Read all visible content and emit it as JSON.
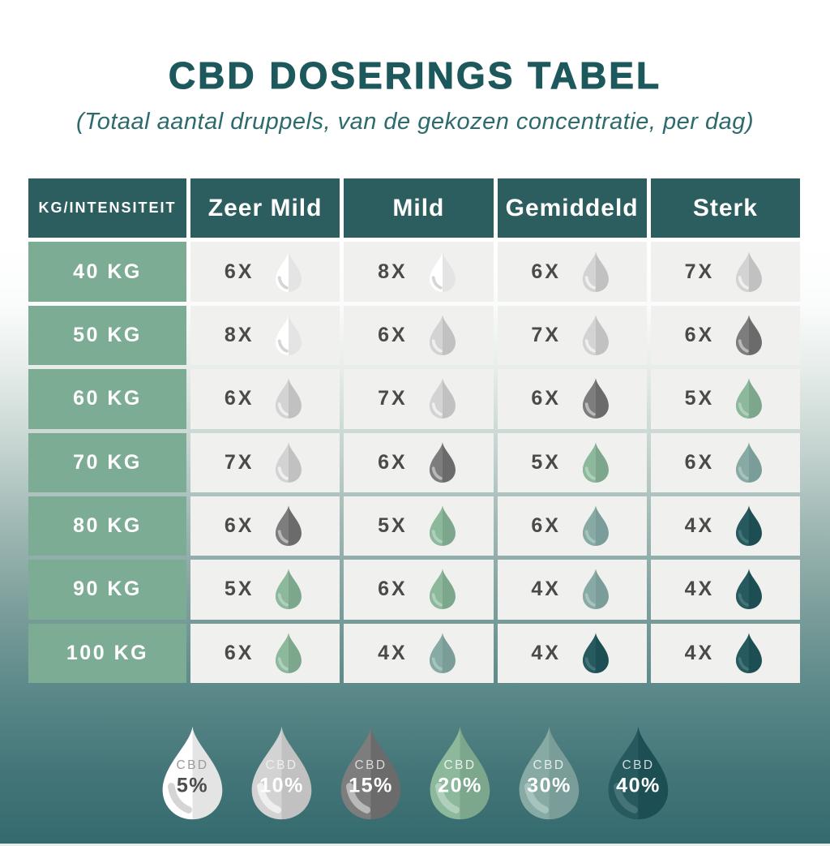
{
  "title": "CBD DOSERINGS TABEL",
  "subtitle": "(Totaal aantal druppels, van de gekozen concentratie, per dag)",
  "table": {
    "corner_header": "KG/INTENSITEIT",
    "columns": [
      "Zeer Mild",
      "Mild",
      "Gemiddeld",
      "Sterk"
    ],
    "rows": [
      {
        "weight": "40 KG",
        "cells": [
          {
            "count": "6X",
            "percent": "5"
          },
          {
            "count": "8X",
            "percent": "5"
          },
          {
            "count": "6X",
            "percent": "10"
          },
          {
            "count": "7X",
            "percent": "10"
          }
        ]
      },
      {
        "weight": "50 KG",
        "cells": [
          {
            "count": "8X",
            "percent": "5"
          },
          {
            "count": "6X",
            "percent": "10"
          },
          {
            "count": "7X",
            "percent": "10"
          },
          {
            "count": "6X",
            "percent": "15"
          }
        ]
      },
      {
        "weight": "60 KG",
        "cells": [
          {
            "count": "6X",
            "percent": "10"
          },
          {
            "count": "7X",
            "percent": "10"
          },
          {
            "count": "6X",
            "percent": "15"
          },
          {
            "count": "5X",
            "percent": "20"
          }
        ]
      },
      {
        "weight": "70 KG",
        "cells": [
          {
            "count": "7X",
            "percent": "10"
          },
          {
            "count": "6X",
            "percent": "15"
          },
          {
            "count": "5X",
            "percent": "20"
          },
          {
            "count": "6X",
            "percent": "30"
          }
        ]
      },
      {
        "weight": "80 KG",
        "cells": [
          {
            "count": "6X",
            "percent": "15"
          },
          {
            "count": "5X",
            "percent": "20"
          },
          {
            "count": "6X",
            "percent": "30"
          },
          {
            "count": "4X",
            "percent": "40"
          }
        ]
      },
      {
        "weight": "90 KG",
        "cells": [
          {
            "count": "5X",
            "percent": "20"
          },
          {
            "count": "6X",
            "percent": "20"
          },
          {
            "count": "4X",
            "percent": "30"
          },
          {
            "count": "4X",
            "percent": "40"
          }
        ]
      },
      {
        "weight": "100 KG",
        "cells": [
          {
            "count": "6X",
            "percent": "20"
          },
          {
            "count": "4X",
            "percent": "30"
          },
          {
            "count": "4X",
            "percent": "40"
          },
          {
            "count": "4X",
            "percent": "40"
          }
        ]
      }
    ]
  },
  "legend": {
    "items": [
      {
        "label": "CBD",
        "value": "5%",
        "percent": "5"
      },
      {
        "label": "CBD",
        "value": "10%",
        "percent": "10"
      },
      {
        "label": "CBD",
        "value": "15%",
        "percent": "15"
      },
      {
        "label": "CBD",
        "value": "20%",
        "percent": "20"
      },
      {
        "label": "CBD",
        "value": "30%",
        "percent": "30"
      },
      {
        "label": "CBD",
        "value": "40%",
        "percent": "40"
      }
    ]
  },
  "drop_colors": {
    "5": {
      "light": "#ffffff",
      "dark": "#e4e4e4",
      "swoosh": "#d5d5d5",
      "label_color": "#9b9b9b",
      "value_color": "#4c4c4c"
    },
    "10": {
      "light": "#d3d3d3",
      "dark": "#c1c1c1",
      "swoosh": "#efefef",
      "label_color": "#eeeeee",
      "value_color": "#ffffff"
    },
    "15": {
      "light": "#7d7d7d",
      "dark": "#6b6b6b",
      "swoosh": "#b9b9b9",
      "label_color": "#d9d9d9",
      "value_color": "#ffffff"
    },
    "20": {
      "light": "#8cb89c",
      "dark": "#7da78d",
      "swoosh": "#b0d0bd",
      "label_color": "#e9f2ec",
      "value_color": "#ffffff"
    },
    "30": {
      "light": "#87aaa5",
      "dark": "#7a9d99",
      "swoosh": "#a6c3be",
      "label_color": "#e2edeb",
      "value_color": "#ffffff"
    },
    "40": {
      "light": "#265a5f",
      "dark": "#1d4e54",
      "swoosh": "#447478",
      "label_color": "#cfdddd",
      "value_color": "#ffffff"
    }
  },
  "colors": {
    "title": "#1d585c",
    "subtitle": "#2d6a6c",
    "header_bg": "#2d5e5f",
    "header_text": "#ffffff",
    "row_label_bg": "#7dac94",
    "row_label_text": "#ffffff",
    "cell_bg": "#f0f1ee",
    "count_text": "#4a4a4a"
  },
  "chart_data": {
    "type": "table",
    "title": "CBD DOSERINGS TABEL",
    "subtitle": "(Totaal aantal druppels, van de gekozen concentratie, per dag)",
    "row_header": "KG/INTENSITEIT",
    "columns": [
      "Zeer Mild",
      "Mild",
      "Gemiddeld",
      "Sterk"
    ],
    "rows": [
      "40 KG",
      "50 KG",
      "60 KG",
      "70 KG",
      "80 KG",
      "90 KG",
      "100 KG"
    ],
    "cells": [
      [
        {
          "drops_per_day": 6,
          "concentration": "5%"
        },
        {
          "drops_per_day": 8,
          "concentration": "5%"
        },
        {
          "drops_per_day": 6,
          "concentration": "10%"
        },
        {
          "drops_per_day": 7,
          "concentration": "10%"
        }
      ],
      [
        {
          "drops_per_day": 8,
          "concentration": "5%"
        },
        {
          "drops_per_day": 6,
          "concentration": "10%"
        },
        {
          "drops_per_day": 7,
          "concentration": "10%"
        },
        {
          "drops_per_day": 6,
          "concentration": "15%"
        }
      ],
      [
        {
          "drops_per_day": 6,
          "concentration": "10%"
        },
        {
          "drops_per_day": 7,
          "concentration": "10%"
        },
        {
          "drops_per_day": 6,
          "concentration": "15%"
        },
        {
          "drops_per_day": 5,
          "concentration": "20%"
        }
      ],
      [
        {
          "drops_per_day": 7,
          "concentration": "10%"
        },
        {
          "drops_per_day": 6,
          "concentration": "15%"
        },
        {
          "drops_per_day": 5,
          "concentration": "20%"
        },
        {
          "drops_per_day": 6,
          "concentration": "30%"
        }
      ],
      [
        {
          "drops_per_day": 6,
          "concentration": "15%"
        },
        {
          "drops_per_day": 5,
          "concentration": "20%"
        },
        {
          "drops_per_day": 6,
          "concentration": "30%"
        },
        {
          "drops_per_day": 4,
          "concentration": "40%"
        }
      ],
      [
        {
          "drops_per_day": 5,
          "concentration": "20%"
        },
        {
          "drops_per_day": 6,
          "concentration": "20%"
        },
        {
          "drops_per_day": 4,
          "concentration": "30%"
        },
        {
          "drops_per_day": 4,
          "concentration": "40%"
        }
      ],
      [
        {
          "drops_per_day": 6,
          "concentration": "20%"
        },
        {
          "drops_per_day": 4,
          "concentration": "30%"
        },
        {
          "drops_per_day": 4,
          "concentration": "40%"
        },
        {
          "drops_per_day": 4,
          "concentration": "40%"
        }
      ]
    ],
    "legend": [
      "CBD 5%",
      "CBD 10%",
      "CBD 15%",
      "CBD 20%",
      "CBD 30%",
      "CBD 40%"
    ],
    "legend_position": "bottom"
  }
}
